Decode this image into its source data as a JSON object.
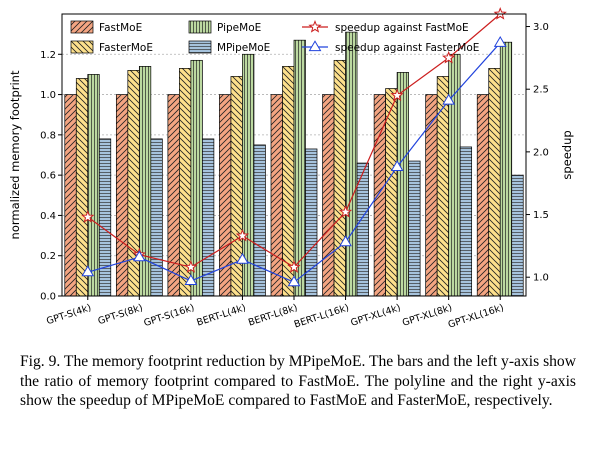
{
  "chart_data": {
    "type": "bar",
    "categories": [
      "GPT-S(4k)",
      "GPT-S(8k)",
      "GPT-S(16k)",
      "BERT-L(4k)",
      "BERT-L(8k)",
      "BERT-L(16k)",
      "GPT-XL(4k)",
      "GPT-XL(8k)",
      "GPT-XL(16k)"
    ],
    "series": [
      {
        "name": "FastMoE",
        "values": [
          1.0,
          1.0,
          1.0,
          1.0,
          1.0,
          1.0,
          1.0,
          1.0,
          1.0
        ],
        "color": "#f4a582",
        "hatch": "diag-right"
      },
      {
        "name": "FasterMoE",
        "values": [
          1.08,
          1.12,
          1.13,
          1.09,
          1.14,
          1.17,
          1.03,
          1.09,
          1.13
        ],
        "color": "#fde08c",
        "hatch": "diag-left"
      },
      {
        "name": "PipeMoE",
        "values": [
          1.1,
          1.14,
          1.17,
          1.2,
          1.27,
          1.31,
          1.11,
          1.2,
          1.26
        ],
        "color": "#bcd9a1",
        "hatch": "vertical"
      },
      {
        "name": "MPipeMoE",
        "values": [
          0.78,
          0.78,
          0.78,
          0.75,
          0.73,
          0.66,
          0.67,
          0.74,
          0.6
        ],
        "color": "#a6c3dd",
        "hatch": "horizontal"
      }
    ],
    "lines": [
      {
        "name": "speedup against FastMoE",
        "values": [
          1.48,
          1.18,
          1.08,
          1.33,
          1.08,
          1.52,
          2.45,
          2.75,
          3.1
        ],
        "color": "#cc1f1f",
        "marker": "star"
      },
      {
        "name": "speedup against FasterMoE",
        "values": [
          1.04,
          1.16,
          0.97,
          1.14,
          0.96,
          1.28,
          1.88,
          2.41,
          2.87
        ],
        "color": "#2244dd",
        "marker": "triangle"
      }
    ],
    "ylabel": "normalized memory footprint",
    "y2label": "speedup",
    "ylim": [
      0,
      1.4
    ],
    "y2lim": [
      0.85,
      3.1
    ],
    "yticks": [
      0.0,
      0.2,
      0.4,
      0.6,
      0.8,
      1.0,
      1.2
    ],
    "y2ticks": [
      1.0,
      1.5,
      2.0,
      2.5,
      3.0
    ],
    "grid": "y",
    "legend": "top, two rows"
  },
  "caption": "Fig. 9.  The memory footprint reduction by MPipeMoE. The bars and the left y-axis show the ratio of memory footprint compared to FastMoE. The polyline and the right y-axis show the speedup of MPipeMoE compared to FastMoE and FasterMoE, respectively."
}
